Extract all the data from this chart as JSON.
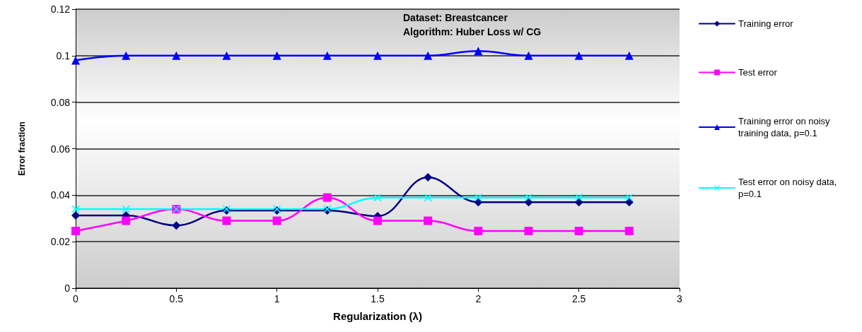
{
  "chart_data": {
    "type": "line",
    "xlabel": "Regularization (λ)",
    "ylabel": "Error fraction",
    "annotations": [
      "Dataset: Breastcancer",
      "Algorithm: Huber Loss w/ CG"
    ],
    "x": [
      0,
      0.25,
      0.5,
      0.75,
      1,
      1.25,
      1.5,
      1.75,
      2,
      2.25,
      2.5,
      2.75
    ],
    "series": [
      {
        "name": "Training error",
        "color": "#000080",
        "marker": "diamond",
        "values": [
          0.0313,
          0.0313,
          0.027,
          0.0334,
          0.0334,
          0.0334,
          0.031,
          0.0477,
          0.037,
          0.037,
          0.037,
          0.037
        ]
      },
      {
        "name": "Test error",
        "color": "#ff00ff",
        "marker": "square",
        "values": [
          0.0246,
          0.029,
          0.034,
          0.029,
          0.029,
          0.039,
          0.029,
          0.029,
          0.0246,
          0.0246,
          0.0246,
          0.0246
        ]
      },
      {
        "name": "Training error on noisy training data, p=0.1",
        "color": "#0000ff",
        "marker": "triangle",
        "values": [
          0.098,
          0.1,
          0.1,
          0.1,
          0.1,
          0.1,
          0.1,
          0.1,
          0.102,
          0.1,
          0.1,
          0.1
        ]
      },
      {
        "name": "Test error on noisy data, p=0.1",
        "color": "#00ffff",
        "marker": "cross",
        "values": [
          0.034,
          0.034,
          0.034,
          0.034,
          0.034,
          0.034,
          0.039,
          0.039,
          0.039,
          0.039,
          0.039,
          0.039
        ]
      }
    ],
    "xlim": [
      0,
      3
    ],
    "xticks": [
      0,
      0.5,
      1,
      1.5,
      2,
      2.5,
      3
    ],
    "ylim": [
      0,
      0.12
    ],
    "yticks": [
      0,
      0.02,
      0.04,
      0.06,
      0.08,
      0.1,
      0.12
    ],
    "grid": "y",
    "legend": "right",
    "line_style": "solid"
  }
}
